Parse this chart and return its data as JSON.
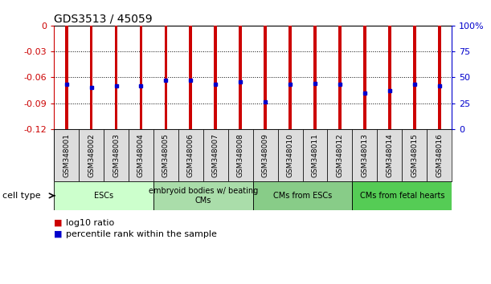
{
  "title": "GDS3513 / 45059",
  "samples": [
    "GSM348001",
    "GSM348002",
    "GSM348003",
    "GSM348004",
    "GSM348005",
    "GSM348006",
    "GSM348007",
    "GSM348008",
    "GSM348009",
    "GSM348010",
    "GSM348011",
    "GSM348012",
    "GSM348013",
    "GSM348014",
    "GSM348015",
    "GSM348016"
  ],
  "log10_ratio": [
    -0.12,
    -0.12,
    -0.12,
    -0.12,
    -0.12,
    -0.12,
    -0.12,
    -0.12,
    -0.124,
    -0.12,
    -0.12,
    -0.12,
    -0.12,
    -0.12,
    -0.12,
    -0.12
  ],
  "percentile_rank_left": [
    -0.068,
    -0.072,
    -0.07,
    -0.07,
    -0.063,
    -0.063,
    -0.068,
    -0.065,
    -0.088,
    -0.068,
    -0.067,
    -0.068,
    -0.078,
    -0.075,
    -0.068,
    -0.07
  ],
  "cell_types": [
    {
      "label": "ESCs",
      "start": 0,
      "end": 3,
      "color": "#ccffcc"
    },
    {
      "label": "embryoid bodies w/ beating\nCMs",
      "start": 4,
      "end": 7,
      "color": "#aaddaa"
    },
    {
      "label": "CMs from ESCs",
      "start": 8,
      "end": 11,
      "color": "#88cc88"
    },
    {
      "label": "CMs from fetal hearts",
      "start": 12,
      "end": 15,
      "color": "#55cc55"
    }
  ],
  "ylim_left": [
    -0.12,
    0
  ],
  "ylim_right": [
    0,
    100
  ],
  "left_ticks": [
    0,
    -0.03,
    -0.06,
    -0.09,
    -0.12
  ],
  "right_ticks": [
    0,
    25,
    50,
    75,
    100
  ],
  "left_color": "#cc0000",
  "right_color": "#0000cc",
  "bar_color": "#cc0000",
  "dot_color": "#0000cc",
  "background_color": "#ffffff",
  "legend_red_label": "log10 ratio",
  "legend_blue_label": "percentile rank within the sample",
  "bar_width": 0.12
}
